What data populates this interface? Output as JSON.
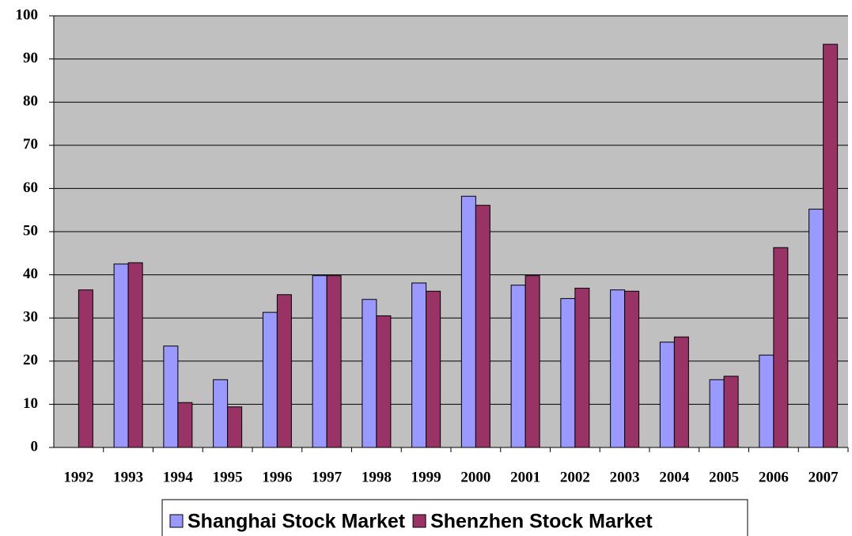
{
  "chart_data": {
    "type": "bar",
    "categories": [
      "1992",
      "1993",
      "1994",
      "1995",
      "1996",
      "1997",
      "1998",
      "1999",
      "2000",
      "2001",
      "2002",
      "2003",
      "2004",
      "2005",
      "2006",
      "2007"
    ],
    "series": [
      {
        "name": "Shanghai Stock Market",
        "color": "#9999ff",
        "values": [
          null,
          42.5,
          23.5,
          15.7,
          31.3,
          39.8,
          34.3,
          38.1,
          58.2,
          37.6,
          34.5,
          36.5,
          24.4,
          15.7,
          21.4,
          55.2
        ]
      },
      {
        "name": "Shenzhen Stock Market",
        "color": "#993366",
        "values": [
          36.5,
          42.8,
          10.4,
          9.4,
          35.4,
          39.8,
          30.5,
          36.2,
          56.1,
          39.8,
          36.9,
          36.2,
          25.6,
          16.5,
          46.3,
          93.4
        ]
      }
    ],
    "ylim": [
      0,
      100
    ],
    "yticks": [
      0,
      10,
      20,
      30,
      40,
      50,
      60,
      70,
      80,
      90,
      100
    ],
    "grid": true,
    "background": "#c0c0c0",
    "legend": "bottom"
  }
}
